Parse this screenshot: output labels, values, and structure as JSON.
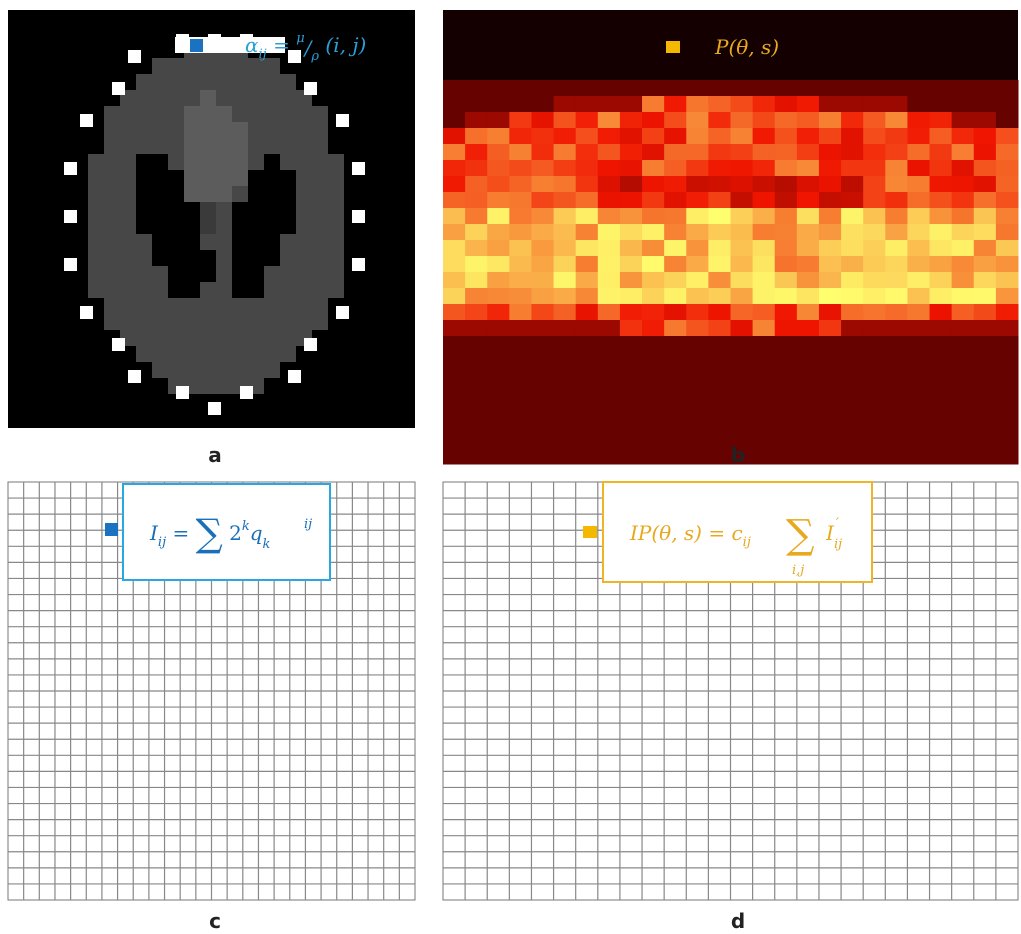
{
  "panels": [
    {
      "label": "a",
      "formula": [
        "α",
        "ij",
        " = ",
        "μ",
        "/",
        "ρ",
        " (i, j)"
      ]
    },
    {
      "label": "b",
      "formula": [
        "P(θ, s)"
      ]
    },
    {
      "label": "c",
      "formula": [
        "I",
        "ij",
        " = ",
        "∑",
        " 2",
        "k",
        "q",
        "k",
        "ij"
      ]
    },
    {
      "label": "d",
      "formula": [
        "IP(θ, s) = c",
        "ij",
        "∑",
        "i,j",
        "I",
        "′",
        "ij"
      ]
    }
  ]
}
